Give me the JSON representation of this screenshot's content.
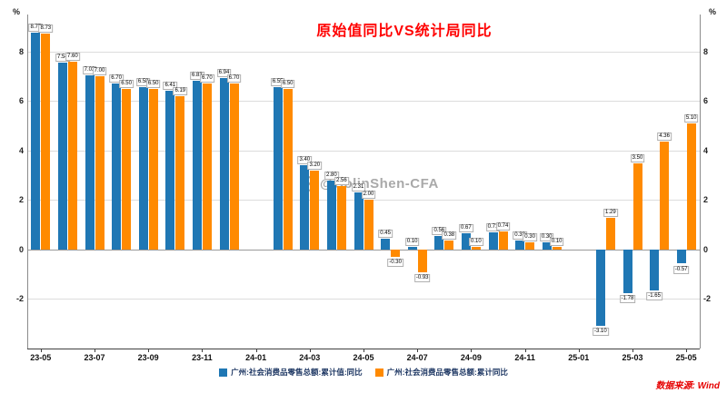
{
  "title": "原始值同比VS统计局同比",
  "watermark": "@ColinShen-CFA",
  "source": "数据来源: Wind",
  "axis": {
    "y_unit_left": "%",
    "y_unit_right": "%"
  },
  "chart_data": {
    "type": "bar",
    "title": "原始值同比VS统计局同比",
    "xlabel": "",
    "ylabel": "%",
    "ylim": [
      -4,
      9.5
    ],
    "y_ticks": [
      -2,
      0,
      2,
      4,
      6,
      8
    ],
    "grid": true,
    "legend_position": "bottom",
    "categories": [
      "23-05",
      "23-06",
      "23-07",
      "23-08",
      "23-09",
      "23-10",
      "23-11",
      "23-12",
      "24-01",
      "24-02",
      "24-03",
      "24-04",
      "24-05",
      "24-06",
      "24-07",
      "24-08",
      "24-09",
      "24-10",
      "24-11",
      "24-12",
      "25-01",
      "25-02",
      "25-03",
      "25-04",
      "25-05"
    ],
    "x_tick_labels": [
      "23-05",
      "23-07",
      "23-09",
      "23-11",
      "24-01",
      "24-03",
      "24-05",
      "24-07",
      "24-09",
      "24-11",
      "25-01",
      "25-03",
      "25-05"
    ],
    "series": [
      {
        "name": "广州:社会消费品零售总额:累计值:同比",
        "color": "#1f77b4",
        "values": [
          8.77,
          7.54,
          7.03,
          6.7,
          6.58,
          6.41,
          6.83,
          6.94,
          null,
          6.55,
          3.4,
          2.8,
          2.31,
          0.45,
          0.1,
          0.56,
          0.67,
          0.71,
          0.38,
          0.3,
          null,
          -3.1,
          -1.78,
          -1.65,
          -0.57
        ]
      },
      {
        "name": "广州:社会消费品零售总额:累计同比",
        "color": "#ff8a00",
        "values": [
          8.73,
          7.6,
          7.0,
          6.5,
          6.5,
          6.19,
          6.7,
          6.7,
          null,
          6.5,
          3.2,
          2.56,
          2.0,
          -0.3,
          -0.93,
          0.38,
          0.1,
          0.74,
          0.3,
          0.1,
          null,
          1.29,
          3.5,
          4.36,
          5.1
        ]
      }
    ]
  }
}
